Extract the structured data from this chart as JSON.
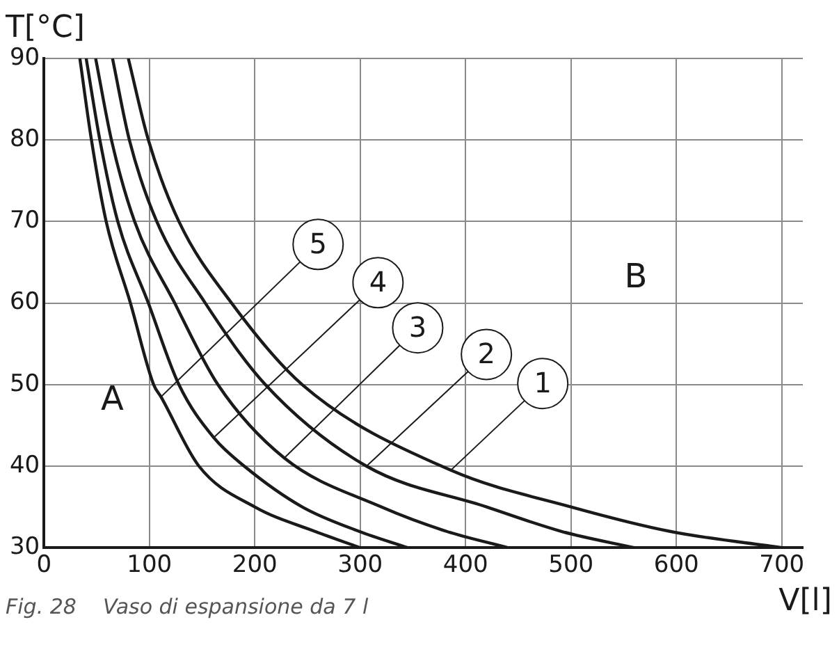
{
  "chart_data": {
    "type": "line",
    "xlabel": "V[l]",
    "ylabel": "T[°C]",
    "annotations": [
      "A",
      "B",
      "Fig. 28    Vaso di espansione da 7 l"
    ],
    "series": [
      {
        "name": "1",
        "color": "#1a1a1a",
        "x": [
          80,
          99,
          128,
          178,
          245,
          386,
          500,
          594,
          700
        ],
        "values": [
          90,
          80,
          70,
          60,
          50,
          39.5,
          35,
          32,
          30
        ]
      },
      {
        "name": "2",
        "color": "#1a1a1a",
        "x": [
          65,
          81,
          107,
          153,
          210,
          306,
          420,
          491,
          560
        ],
        "values": [
          90,
          80,
          70,
          60,
          50,
          40,
          35,
          32,
          30
        ]
      },
      {
        "name": "3",
        "color": "#1a1a1a",
        "x": [
          49,
          64,
          86,
          124,
          165,
          228,
          320,
          382,
          440
        ],
        "values": [
          90,
          80,
          70,
          60,
          50,
          41,
          35,
          32,
          30
        ]
      },
      {
        "name": "4",
        "color": "#1a1a1a",
        "x": [
          40,
          53,
          70,
          99,
          128,
          161,
          190,
          245,
          299,
          345
        ],
        "values": [
          90,
          80,
          70,
          60,
          50,
          43.5,
          40,
          35,
          32,
          30
        ]
      },
      {
        "name": "5",
        "color": "#1a1a1a",
        "x": [
          34,
          45,
          59,
          82,
          104,
          111,
          147,
          200,
          257,
          300
        ],
        "values": [
          90,
          80,
          70,
          60,
          50,
          48.5,
          40,
          35,
          32,
          30
        ]
      }
    ],
    "xlim": [
      0,
      720
    ],
    "ylim": [
      30,
      90
    ],
    "xticks": [
      0,
      100,
      200,
      300,
      400,
      500,
      600,
      700
    ],
    "yticks": [
      30,
      40,
      50,
      60,
      70,
      80,
      90
    ],
    "grid": true,
    "marker": "none",
    "line_style": "solid"
  }
}
